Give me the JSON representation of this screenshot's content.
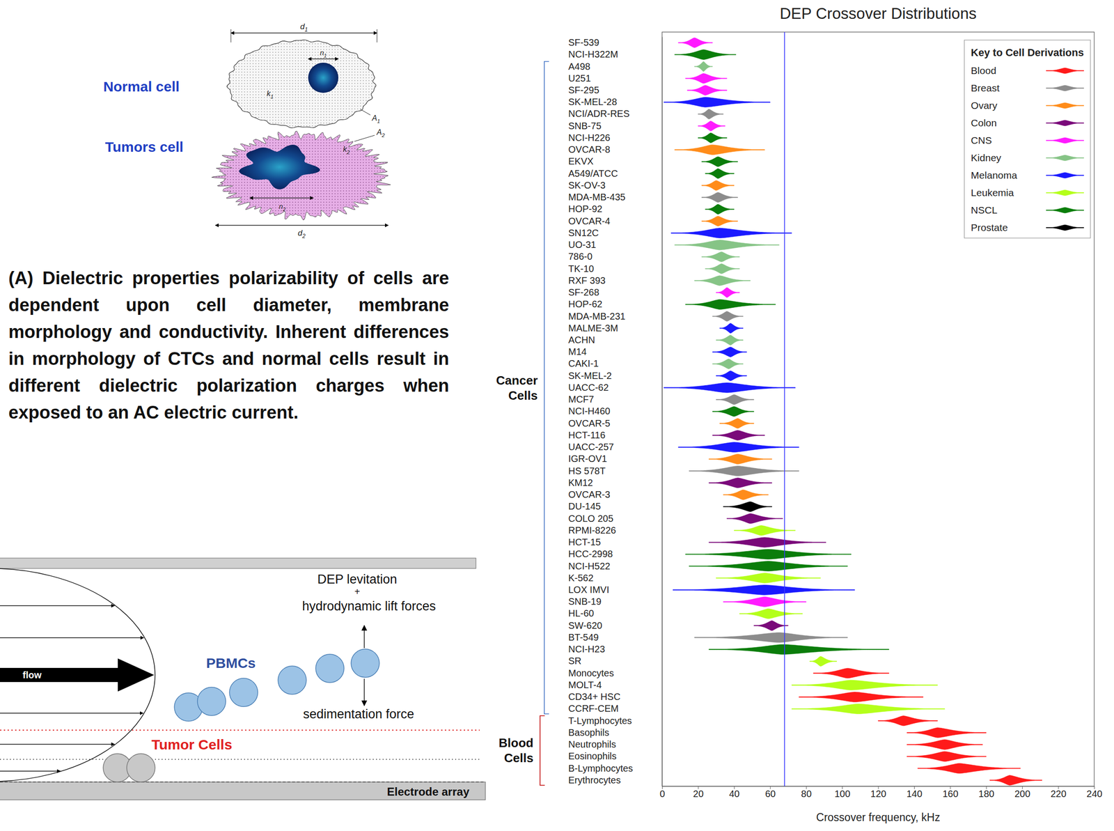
{
  "chart_data": {
    "type": "violin",
    "orientation": "horizontal",
    "title": "DEP Crossover Distributions",
    "x_label": "Crossover frequency, kHz",
    "xlim": [
      0,
      240
    ],
    "xticks": [
      0,
      20,
      40,
      60,
      80,
      100,
      120,
      140,
      160,
      180,
      200,
      220,
      240
    ],
    "vline": 68,
    "categories": [
      "SF-539",
      "NCI-H322M",
      "A498",
      "U251",
      "SF-295",
      "SK-MEL-28",
      "NCI/ADR-RES",
      "SNB-75",
      "NCI-H226",
      "OVCAR-8",
      "EKVX",
      "A549/ATCC",
      "SK-OV-3",
      "MDA-MB-435",
      "HOP-92",
      "OVCAR-4",
      "SN12C",
      "UO-31",
      "786-0",
      "TK-10",
      "RXF 393",
      "SF-268",
      "HOP-62",
      "MDA-MB-231",
      "MALME-3M",
      "ACHN",
      "M14",
      "CAKI-1",
      "SK-MEL-2",
      "UACC-62",
      "MCF7",
      "NCI-H460",
      "OVCAR-5",
      "HCT-116",
      "UACC-257",
      "IGR-OV1",
      "HS 578T",
      "KM12",
      "OVCAR-3",
      "DU-145",
      "COLO 205",
      "RPMI-8226",
      "HCT-15",
      "HCC-2998",
      "NCI-H522",
      "K-562",
      "LOX IMVI",
      "SNB-19",
      "HL-60",
      "SW-620",
      "BT-549",
      "NCI-H23",
      "SR",
      "Monocytes",
      "MOLT-4",
      "CD34+ HSC",
      "CCRF-CEM",
      "T-Lymphocytes",
      "Basophils",
      "Neutrophils",
      "Eosinophils",
      "B-Lymphocytes",
      "Erythrocytes"
    ],
    "derivations": [
      "CNS",
      "NSCL",
      "Kidney",
      "CNS",
      "CNS",
      "Melanoma",
      "Breast",
      "CNS",
      "NSCL",
      "Ovary",
      "NSCL",
      "NSCL",
      "Ovary",
      "Breast",
      "NSCL",
      "Ovary",
      "Melanoma",
      "Kidney",
      "Kidney",
      "Kidney",
      "Kidney",
      "CNS",
      "NSCL",
      "Breast",
      "Melanoma",
      "Kidney",
      "Melanoma",
      "Kidney",
      "Melanoma",
      "Melanoma",
      "Breast",
      "NSCL",
      "Ovary",
      "Colon",
      "Melanoma",
      "Ovary",
      "Breast",
      "Colon",
      "Ovary",
      "Prostate",
      "Colon",
      "Leukemia",
      "Colon",
      "NSCL",
      "NSCL",
      "Leukemia",
      "Melanoma",
      "CNS",
      "Leukemia",
      "Colon",
      "Breast",
      "NSCL",
      "Leukemia",
      "Blood",
      "Leukemia",
      "Blood",
      "Leukemia",
      "Blood",
      "Blood",
      "Blood",
      "Blood",
      "Blood",
      "Blood"
    ],
    "values": [
      18,
      23,
      23,
      23,
      24,
      24,
      26,
      27,
      27,
      28,
      31,
      31,
      30,
      31,
      31,
      31,
      32,
      32,
      33,
      33,
      32,
      36,
      32,
      36,
      38,
      38,
      38,
      37,
      38,
      36,
      40,
      40,
      42,
      42,
      40,
      42,
      42,
      42,
      45,
      49,
      49,
      55,
      57,
      59,
      59,
      57,
      57,
      57,
      59,
      61,
      65,
      67,
      88,
      103,
      105,
      107,
      109,
      134,
      153,
      157,
      157,
      165,
      193
    ],
    "low": [
      9,
      7,
      18,
      13,
      14,
      1,
      20,
      20,
      20,
      7,
      22,
      24,
      22,
      22,
      24,
      22,
      5,
      7,
      22,
      24,
      18,
      30,
      13,
      28,
      32,
      30,
      28,
      28,
      30,
      1,
      30,
      28,
      32,
      28,
      9,
      26,
      15,
      26,
      34,
      34,
      36,
      40,
      26,
      13,
      15,
      30,
      6,
      34,
      43,
      51,
      18,
      26,
      82,
      84,
      72,
      76,
      72,
      120,
      136,
      136,
      136,
      142,
      182
    ],
    "high": [
      28,
      41,
      28,
      36,
      36,
      60,
      34,
      35,
      36,
      57,
      42,
      40,
      40,
      42,
      40,
      42,
      72,
      65,
      43,
      43,
      49,
      43,
      63,
      45,
      45,
      45,
      47,
      45,
      47,
      74,
      51,
      51,
      51,
      57,
      76,
      61,
      76,
      61,
      59,
      61,
      67,
      74,
      91,
      105,
      103,
      88,
      107,
      80,
      78,
      70,
      103,
      126,
      97,
      126,
      153,
      145,
      157,
      153,
      180,
      178,
      180,
      199,
      211
    ],
    "legend": "top-right",
    "legend_title": "Key to Cell Derivations",
    "groups": [
      {
        "name": "Blood",
        "color": "#ff1a1a"
      },
      {
        "name": "Breast",
        "color": "#8c8c8c"
      },
      {
        "name": "Ovary",
        "color": "#ff8c1a"
      },
      {
        "name": "Colon",
        "color": "#7a0a7a"
      },
      {
        "name": "CNS",
        "color": "#ff1aff"
      },
      {
        "name": "Kidney",
        "color": "#86c486"
      },
      {
        "name": "Melanoma",
        "color": "#1a1aff"
      },
      {
        "name": "Leukemia",
        "color": "#b4ff1a"
      },
      {
        "name": "NSCL",
        "color": "#0b7d0b"
      },
      {
        "name": "Prostate",
        "color": "#000000"
      }
    ],
    "brackets": [
      {
        "label": "Cancer Cells",
        "first": "A498",
        "last": "CCRF-CEM",
        "color": "#3c6fc4"
      },
      {
        "label": "Blood Cells",
        "first": "T-Lymphocytes",
        "last": "Erythrocytes",
        "color": "#c00000"
      }
    ]
  },
  "diagram": {
    "normal_label": "Normal cell",
    "tumor_label": "Tumors cell",
    "normal_symbols": [
      "d1",
      "n1",
      "k1",
      "A1"
    ],
    "tumor_symbols": [
      "d2",
      "n2",
      "k2",
      "A2"
    ],
    "caption": "(A) Dielectric properties polarizability of cells are dependent upon cell diameter, membrane morphology and conductivity. Inherent differences in morphology of CTCs and normal cells result in different dielectric polarization charges when exposed to an AC electric current.",
    "flow_diagram": {
      "flow": "flow",
      "levitation": "DEP levitation",
      "plus": "+",
      "lift": "hydrodynamic lift forces",
      "pbmc": "PBMCs",
      "sedimentation": "sedimentation force",
      "tumor": "Tumor Cells",
      "electrode": "Electrode array"
    }
  }
}
